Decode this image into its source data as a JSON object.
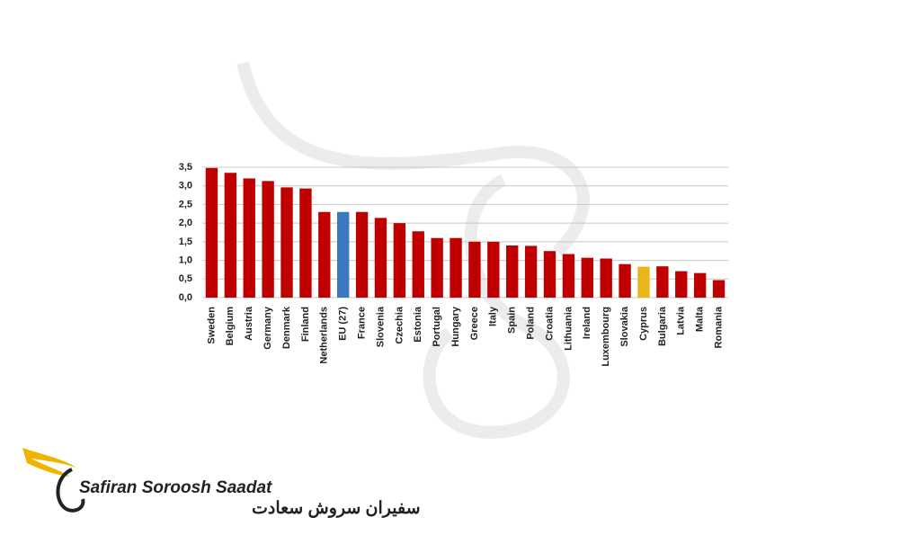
{
  "chart_data": {
    "type": "bar",
    "categories": [
      "Sweden",
      "Belgium",
      "Austria",
      "Germany",
      "Denmark",
      "Finland",
      "Netherlands",
      "EU (27)",
      "France",
      "Slovenia",
      "Czechia",
      "Estonia",
      "Portugal",
      "Hungary",
      "Greece",
      "Italy",
      "Spain",
      "Poland",
      "Croatia",
      "Lithuania",
      "Ireland",
      "Luxembourg",
      "Slovakia",
      "Cyprus",
      "Bulgaria",
      "Latvia",
      "Malta",
      "Romania"
    ],
    "values": [
      3.48,
      3.35,
      3.2,
      3.13,
      2.96,
      2.93,
      2.3,
      2.3,
      2.3,
      2.14,
      2.0,
      1.78,
      1.6,
      1.6,
      1.5,
      1.5,
      1.4,
      1.39,
      1.25,
      1.17,
      1.07,
      1.05,
      0.9,
      0.83,
      0.84,
      0.71,
      0.66,
      0.47
    ],
    "colors": [
      "#c00000",
      "#c00000",
      "#c00000",
      "#c00000",
      "#c00000",
      "#c00000",
      "#c00000",
      "#3a78c0",
      "#c00000",
      "#c00000",
      "#c00000",
      "#c00000",
      "#c00000",
      "#c00000",
      "#c00000",
      "#c00000",
      "#c00000",
      "#c00000",
      "#c00000",
      "#c00000",
      "#c00000",
      "#c00000",
      "#c00000",
      "#e8b51a",
      "#c00000",
      "#c00000",
      "#c00000",
      "#c00000"
    ],
    "ylim": [
      0,
      3.5
    ],
    "yticks": [
      {
        "value": 0,
        "label": "0,0"
      },
      {
        "value": 0.5,
        "label": "0,5"
      },
      {
        "value": 1,
        "label": "1,0"
      },
      {
        "value": 1.5,
        "label": "1,5"
      },
      {
        "value": 2,
        "label": "2,0"
      },
      {
        "value": 2.5,
        "label": "2,5"
      },
      {
        "value": 3,
        "label": "3,0"
      },
      {
        "value": 3.5,
        "label": "3,5"
      }
    ],
    "grid": true
  },
  "logo": {
    "name": "Safiran Soroosh Saadat",
    "name_fa": "سفیران سروش سعادت"
  }
}
